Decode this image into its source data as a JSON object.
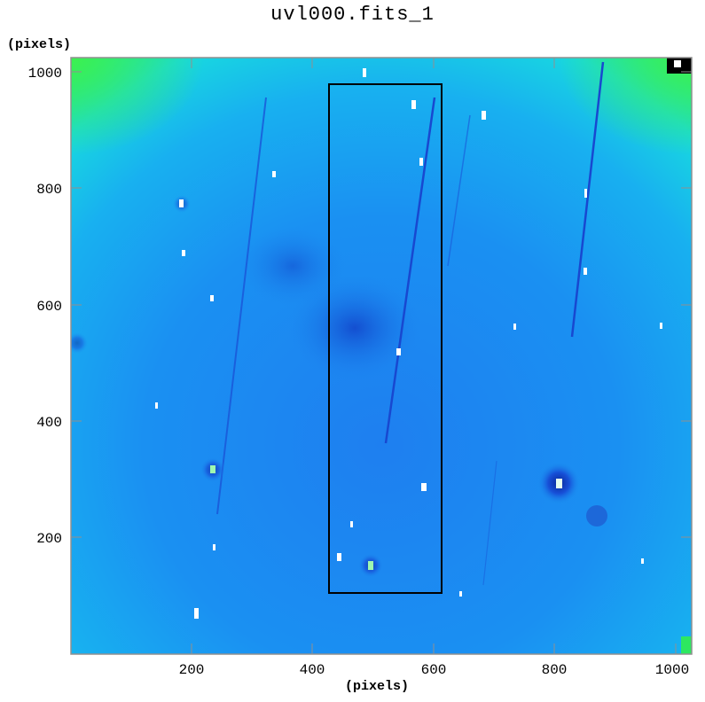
{
  "title": "uvl000.fits_1",
  "axes": {
    "x_label": "(pixels)",
    "y_label": "(pixels)",
    "x_ticks": [
      "200",
      "400",
      "600",
      "800",
      "1000"
    ],
    "y_ticks": [
      "200",
      "400",
      "600",
      "800",
      "1000"
    ],
    "x_range": [
      0,
      1024
    ],
    "y_range": [
      0,
      1024
    ]
  },
  "image": {
    "description_colormap": "blue-cyan-green intensity",
    "background_color": "#1a8ef0",
    "corner_color": "#2de860"
  },
  "selection_box": {
    "x_range": [
      428,
      613
    ],
    "y_range": [
      104,
      982
    ]
  }
}
